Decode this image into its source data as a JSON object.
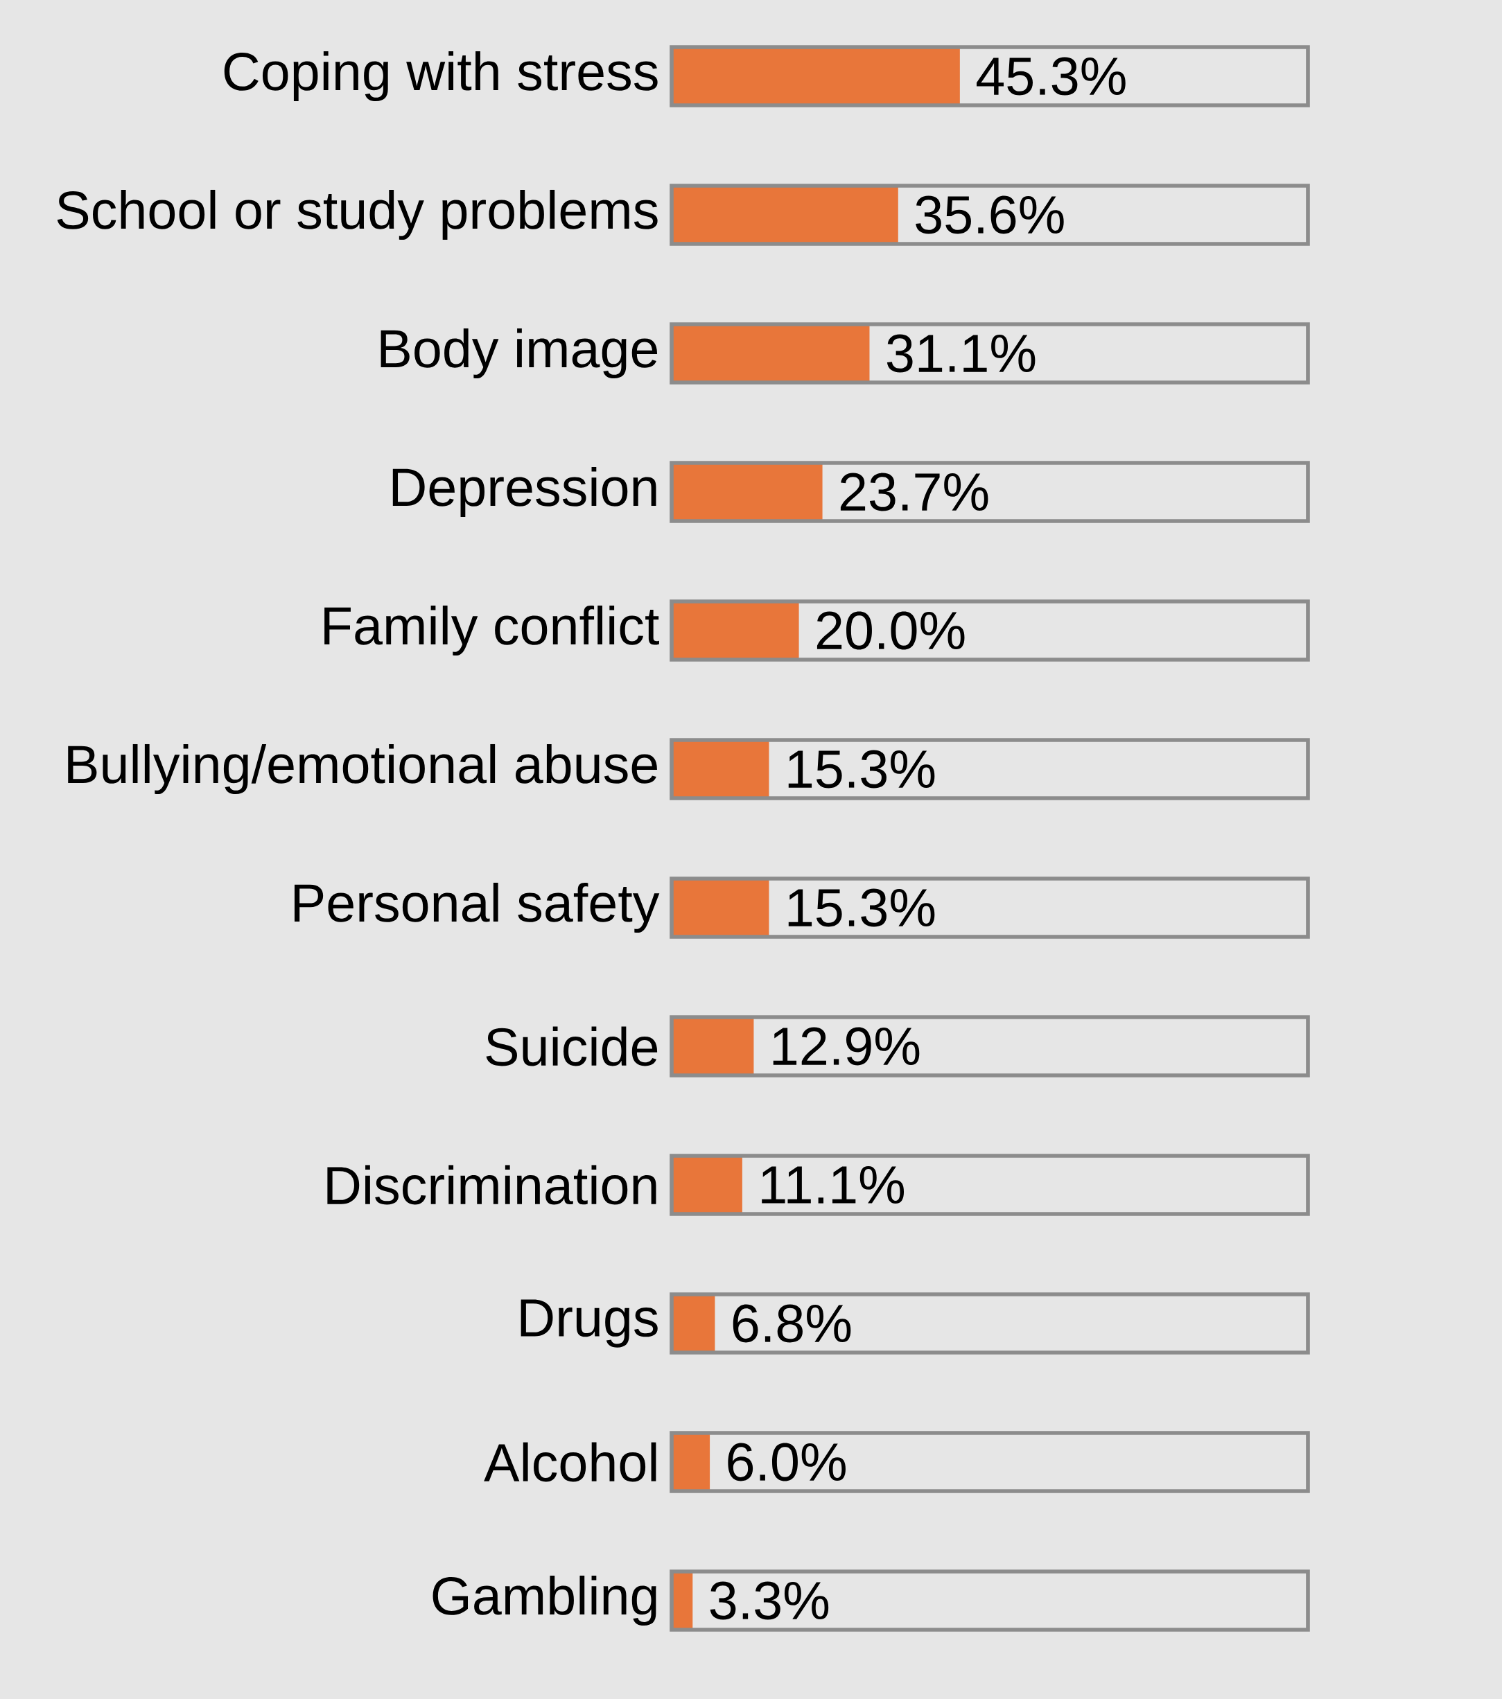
{
  "chart_data": {
    "type": "bar",
    "orientation": "horizontal",
    "categories": [
      "Coping with stress",
      "School or study problems",
      "Body image",
      "Depression",
      "Family conflict",
      "Bullying/emotional abuse",
      "Personal safety",
      "Suicide",
      "Discrimination",
      "Drugs",
      "Alcohol",
      "Gambling"
    ],
    "values": [
      45.3,
      35.6,
      31.1,
      23.7,
      20.0,
      15.3,
      15.3,
      12.9,
      11.1,
      6.8,
      6.0,
      3.3
    ],
    "value_labels": [
      "45.3%",
      "35.6%",
      "31.1%",
      "23.7%",
      "20.0%",
      "15.3%",
      "15.3%",
      "12.9%",
      "11.1%",
      "6.8%",
      "6.0%",
      "3.3%"
    ],
    "color": "#e8763a",
    "xlim": [
      0,
      100
    ]
  }
}
